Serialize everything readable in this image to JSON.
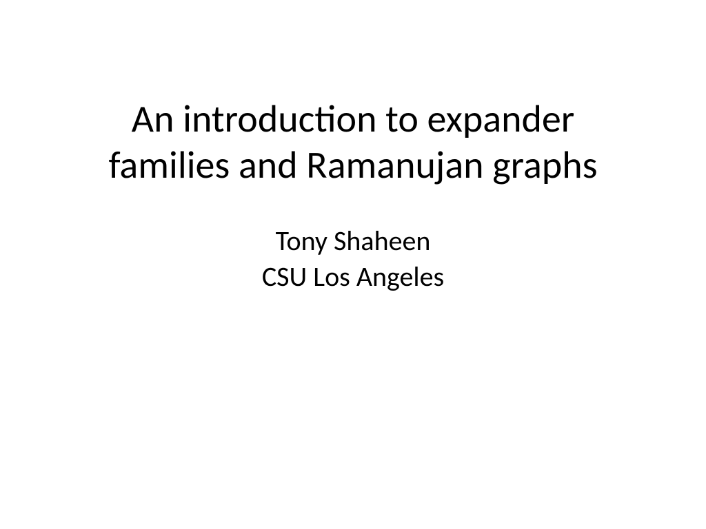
{
  "slide": {
    "title": "An introduction to expander families and Ramanujan graphs",
    "author": "Tony Shaheen",
    "affiliation": "CSU Los Angeles",
    "background_color": "#ffffff",
    "text_color": "#000000",
    "title_fontsize": 56,
    "subtitle_fontsize": 40,
    "font_family": "Calibri"
  }
}
